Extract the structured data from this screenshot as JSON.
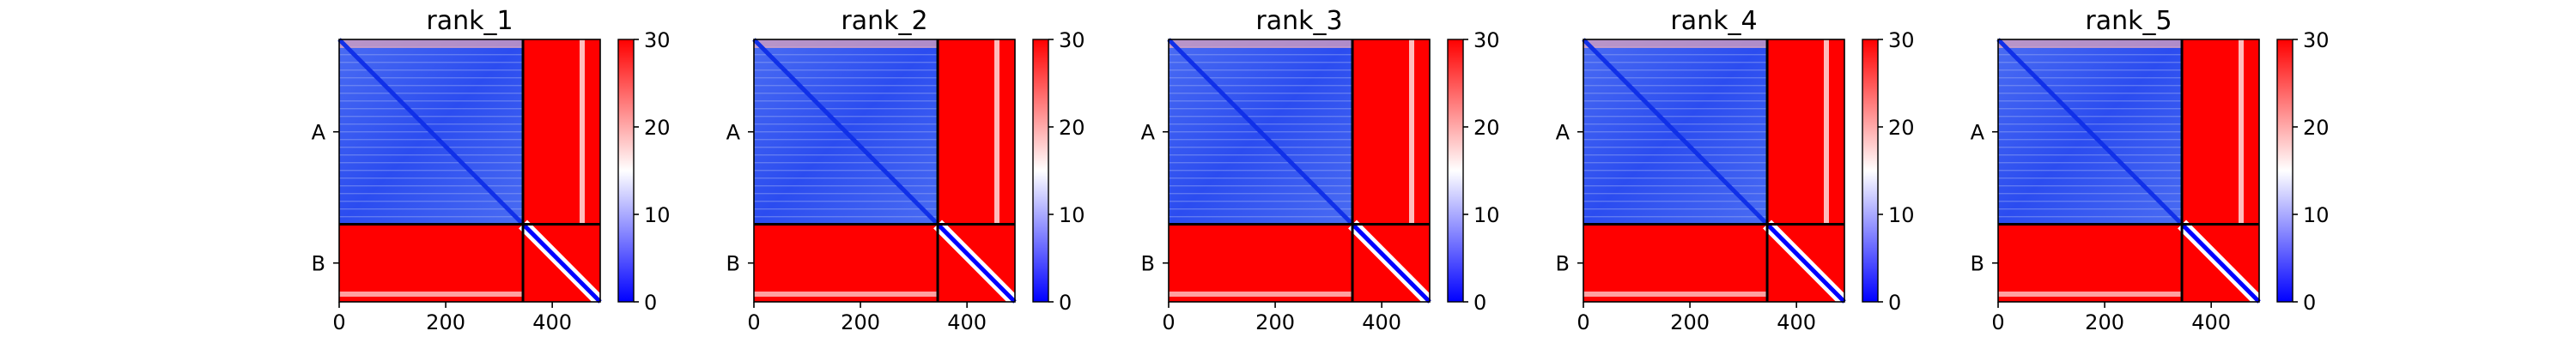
{
  "chart_data": [
    {
      "type": "heatmap",
      "title": "rank_1",
      "x_ticks": [
        "0",
        "200",
        "400"
      ],
      "x_tick_values": [
        0,
        200,
        400
      ],
      "xlim": [
        0,
        490
      ],
      "y_chain_labels": [
        "A",
        "B"
      ],
      "chain_boundary": 345,
      "colorbar": {
        "ticks": [
          "0",
          "10",
          "20",
          "30"
        ],
        "range": [
          0,
          30
        ],
        "colormap": "bwr",
        "low": "#0000ff",
        "mid": "#ffffff",
        "high": "#ff0000"
      },
      "blocks": {
        "A-A": "low (~3-6)",
        "A-B": "high (~30)",
        "B-A": "high (~30)",
        "B-B": "low diagonal band, high elsewhere"
      }
    },
    {
      "type": "heatmap",
      "title": "rank_2",
      "x_ticks": [
        "0",
        "200",
        "400"
      ],
      "x_tick_values": [
        0,
        200,
        400
      ],
      "xlim": [
        0,
        490
      ],
      "y_chain_labels": [
        "A",
        "B"
      ],
      "chain_boundary": 345,
      "colorbar": {
        "ticks": [
          "0",
          "10",
          "20",
          "30"
        ],
        "range": [
          0,
          30
        ],
        "colormap": "bwr",
        "low": "#0000ff",
        "mid": "#ffffff",
        "high": "#ff0000"
      },
      "blocks": {
        "A-A": "low (~3-6)",
        "A-B": "high (~30)",
        "B-A": "high (~30)",
        "B-B": "low diagonal band, high elsewhere"
      }
    },
    {
      "type": "heatmap",
      "title": "rank_3",
      "x_ticks": [
        "0",
        "200",
        "400"
      ],
      "x_tick_values": [
        0,
        200,
        400
      ],
      "xlim": [
        0,
        490
      ],
      "y_chain_labels": [
        "A",
        "B"
      ],
      "chain_boundary": 345,
      "colorbar": {
        "ticks": [
          "0",
          "10",
          "20",
          "30"
        ],
        "range": [
          0,
          30
        ],
        "colormap": "bwr",
        "low": "#0000ff",
        "mid": "#ffffff",
        "high": "#ff0000"
      },
      "blocks": {
        "A-A": "low (~3-6)",
        "A-B": "high (~30)",
        "B-A": "high (~30)",
        "B-B": "low diagonal band, high elsewhere"
      }
    },
    {
      "type": "heatmap",
      "title": "rank_4",
      "x_ticks": [
        "0",
        "200",
        "400"
      ],
      "x_tick_values": [
        0,
        200,
        400
      ],
      "xlim": [
        0,
        490
      ],
      "y_chain_labels": [
        "A",
        "B"
      ],
      "chain_boundary": 345,
      "colorbar": {
        "ticks": [
          "0",
          "10",
          "20",
          "30"
        ],
        "range": [
          0,
          30
        ],
        "colormap": "bwr",
        "low": "#0000ff",
        "mid": "#ffffff",
        "high": "#ff0000"
      },
      "blocks": {
        "A-A": "low (~3-6)",
        "A-B": "high (~30)",
        "B-A": "high (~30)",
        "B-B": "low diagonal band, high elsewhere"
      }
    },
    {
      "type": "heatmap",
      "title": "rank_5",
      "x_ticks": [
        "0",
        "200",
        "400"
      ],
      "x_tick_values": [
        0,
        200,
        400
      ],
      "xlim": [
        0,
        490
      ],
      "y_chain_labels": [
        "A",
        "B"
      ],
      "chain_boundary": 345,
      "colorbar": {
        "ticks": [
          "0",
          "10",
          "20",
          "30"
        ],
        "range": [
          0,
          30
        ],
        "colormap": "bwr",
        "low": "#0000ff",
        "mid": "#ffffff",
        "high": "#ff0000"
      },
      "blocks": {
        "A-A": "low (~3-6)",
        "A-B": "high (~30)",
        "B-A": "high (~30)",
        "B-B": "low diagonal band, high elsewhere"
      }
    }
  ]
}
